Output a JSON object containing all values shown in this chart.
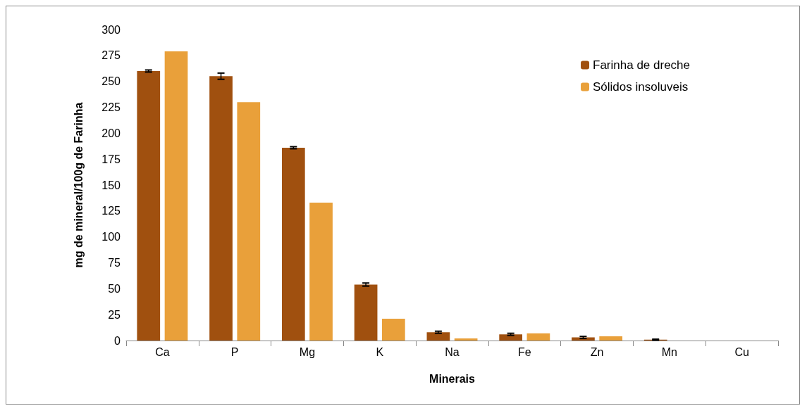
{
  "chart_data": {
    "type": "bar",
    "xlabel": "Minerais",
    "ylabel": "mg de mineral/100g de Farinha",
    "categories": [
      "Ca",
      "P",
      "Mg",
      "K",
      "Na",
      "Fe",
      "Zn",
      "Mn",
      "Cu"
    ],
    "series": [
      {
        "name": "Farinha de dreche",
        "color": "#a0500f",
        "values": [
          260,
          255,
          186,
          54,
          8,
          6,
          3,
          0.8,
          null
        ],
        "errors": [
          1,
          3,
          1,
          1.5,
          1,
          1,
          1,
          0.5,
          null
        ]
      },
      {
        "name": "Sólidos insoluveis",
        "color": "#e9a03a",
        "values": [
          279,
          230,
          133,
          21,
          2,
          7,
          4,
          null,
          null
        ]
      }
    ],
    "ylim": [
      0,
      300
    ],
    "yticks": [
      0,
      25,
      50,
      75,
      100,
      125,
      150,
      175,
      200,
      225,
      250,
      275,
      300
    ],
    "grid": false,
    "legend": "top right"
  }
}
